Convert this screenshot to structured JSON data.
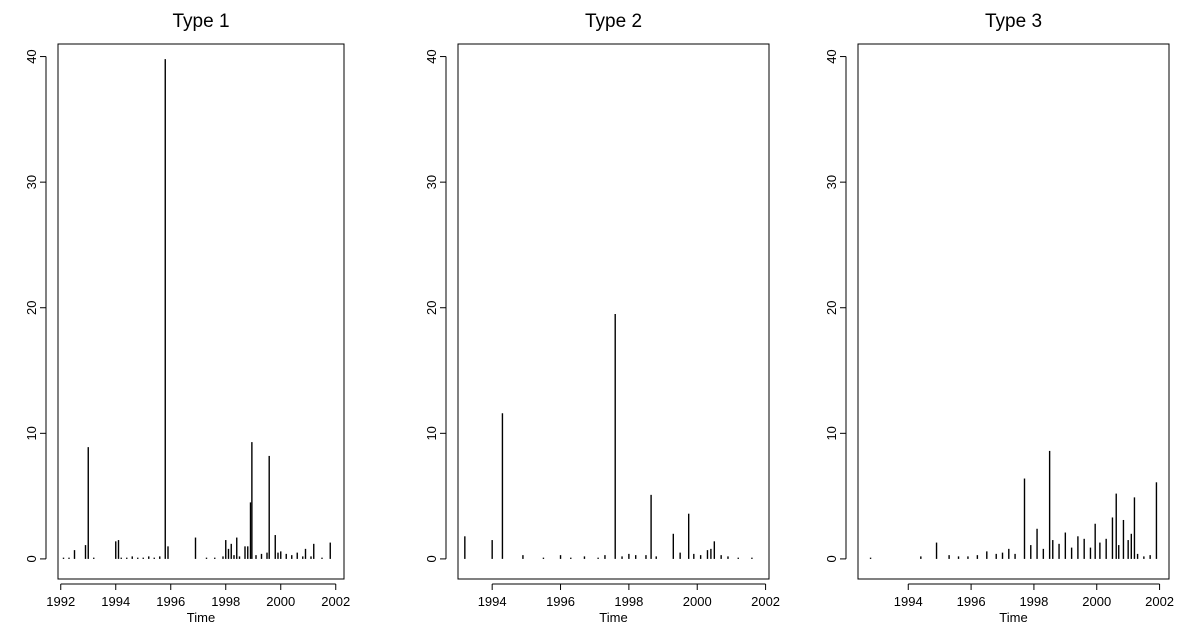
{
  "chart_data": [
    {
      "type": "bar",
      "title": "Type 1",
      "xlabel": "Time",
      "ylabel": "",
      "xlim": [
        1991.9,
        2002.3
      ],
      "ylim": [
        -1.6,
        41
      ],
      "xticks": [
        1992,
        1994,
        1996,
        1998,
        2000,
        2002
      ],
      "yticks": [
        0,
        10,
        20,
        30,
        40
      ],
      "grid": false,
      "series": [
        {
          "x": [
            1992.1,
            1992.3,
            1992.5,
            1992.9,
            1993.0,
            1993.2,
            1994.0,
            1994.1,
            1994.2,
            1994.4,
            1994.6,
            1994.8,
            1995.0,
            1995.2,
            1995.4,
            1995.6,
            1995.8,
            1995.9,
            1996.9,
            1997.3,
            1997.6,
            1997.9,
            1998.0,
            1998.1,
            1998.2,
            1998.3,
            1998.4,
            1998.5,
            1998.7,
            1998.8,
            1998.9,
            1998.95,
            1999.1,
            1999.3,
            1999.5,
            1999.58,
            1999.8,
            1999.9,
            2000.0,
            2000.2,
            2000.4,
            2000.6,
            2000.8,
            2000.9,
            2001.1,
            2001.2,
            2001.5,
            2001.8
          ],
          "values": [
            0.1,
            0.1,
            0.7,
            1.1,
            8.9,
            0.1,
            1.4,
            1.5,
            0.1,
            0.1,
            0.2,
            0.1,
            0.1,
            0.2,
            0.1,
            0.2,
            39.8,
            1.0,
            1.7,
            0.1,
            0.1,
            0.2,
            1.5,
            0.8,
            1.2,
            0.3,
            1.7,
            0.2,
            1.0,
            1.0,
            4.5,
            9.3,
            0.3,
            0.4,
            0.5,
            8.2,
            1.9,
            0.5,
            0.6,
            0.4,
            0.3,
            0.5,
            0.2,
            0.8,
            0.2,
            1.2,
            0.1,
            1.3
          ]
        }
      ]
    },
    {
      "type": "bar",
      "title": "Type 2",
      "xlabel": "Time",
      "ylabel": "",
      "xlim": [
        1993.0,
        2002.1
      ],
      "ylim": [
        -1.6,
        41
      ],
      "xticks": [
        1994,
        1996,
        1998,
        2000,
        2002
      ],
      "yticks": [
        0,
        10,
        20,
        30,
        40
      ],
      "grid": false,
      "series": [
        {
          "x": [
            1993.2,
            1994.0,
            1994.3,
            1994.9,
            1995.5,
            1996.0,
            1996.3,
            1996.7,
            1997.1,
            1997.3,
            1997.6,
            1997.8,
            1998.0,
            1998.2,
            1998.5,
            1998.65,
            1998.8,
            1999.3,
            1999.5,
            1999.75,
            1999.9,
            2000.1,
            2000.3,
            2000.4,
            2000.5,
            2000.7,
            2000.9,
            2001.2,
            2001.6
          ],
          "values": [
            1.8,
            1.5,
            11.6,
            0.3,
            0.1,
            0.3,
            0.1,
            0.2,
            0.1,
            0.3,
            19.5,
            0.2,
            0.4,
            0.3,
            0.3,
            5.1,
            0.2,
            2.0,
            0.5,
            3.6,
            0.4,
            0.3,
            0.7,
            0.8,
            1.4,
            0.3,
            0.2,
            0.1,
            0.1
          ]
        }
      ]
    },
    {
      "type": "bar",
      "title": "Type 3",
      "xlabel": "Time",
      "ylabel": "",
      "xlim": [
        1992.4,
        2002.3
      ],
      "ylim": [
        -1.6,
        41
      ],
      "xticks": [
        1994,
        1996,
        1998,
        2000,
        2002
      ],
      "yticks": [
        0,
        10,
        20,
        30,
        40
      ],
      "grid": false,
      "series": [
        {
          "x": [
            1992.8,
            1994.4,
            1994.9,
            1995.3,
            1995.6,
            1995.9,
            1996.2,
            1996.5,
            1996.8,
            1997.0,
            1997.2,
            1997.4,
            1997.7,
            1997.9,
            1998.1,
            1998.3,
            1998.5,
            1998.6,
            1998.8,
            1999.0,
            1999.2,
            1999.4,
            1999.6,
            1999.8,
            1999.95,
            2000.1,
            2000.3,
            2000.5,
            2000.62,
            2000.7,
            2000.85,
            2001.0,
            2001.1,
            2001.2,
            2001.3,
            2001.5,
            2001.7,
            2001.9
          ],
          "values": [
            0.1,
            0.2,
            1.3,
            0.3,
            0.2,
            0.2,
            0.3,
            0.6,
            0.4,
            0.5,
            0.8,
            0.4,
            6.4,
            1.1,
            2.4,
            0.8,
            8.6,
            1.5,
            1.2,
            2.1,
            0.9,
            1.8,
            1.6,
            0.9,
            2.8,
            1.3,
            1.6,
            3.3,
            5.2,
            1.1,
            3.1,
            1.5,
            2.0,
            4.9,
            0.4,
            0.2,
            0.3,
            6.1
          ]
        }
      ]
    }
  ]
}
